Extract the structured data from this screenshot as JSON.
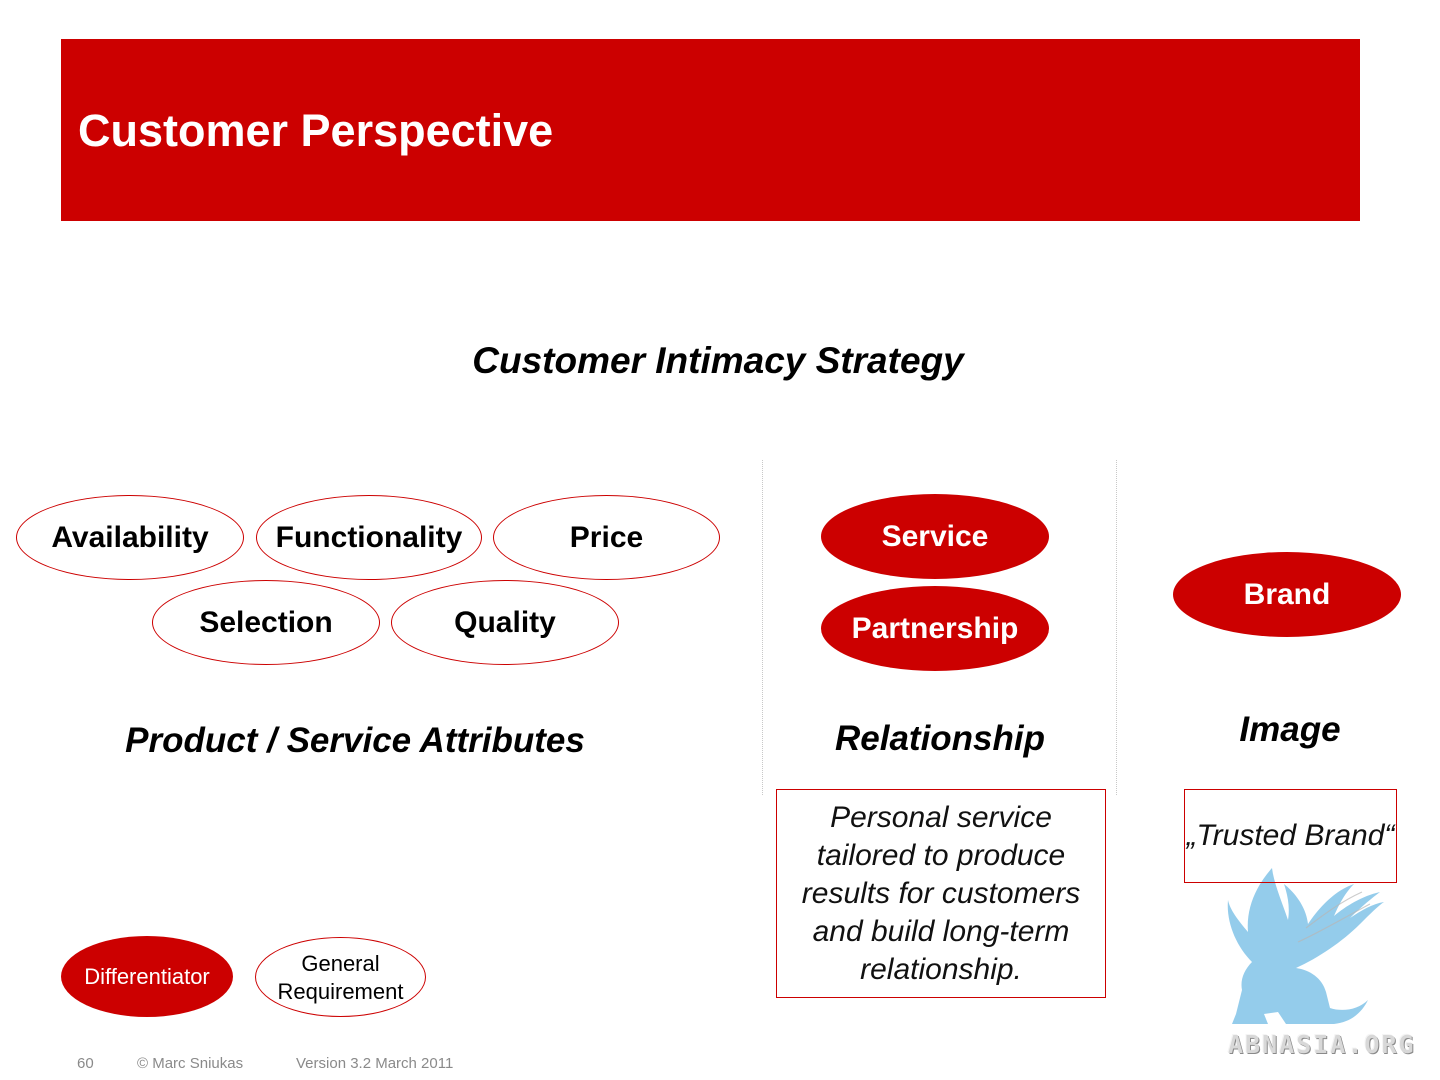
{
  "header": {
    "title": "Customer Perspective"
  },
  "diagram": {
    "subtitle": "Customer Intimacy Strategy",
    "attributes": {
      "items": [
        "Availability",
        "Functionality",
        "Price",
        "Selection",
        "Quality"
      ],
      "label": "Product / Service Attributes"
    },
    "relationship": {
      "items": [
        "Service",
        "Partnership"
      ],
      "label": "Relationship",
      "description": "Personal service tailored to produce results for customers and build long-term relationship."
    },
    "image": {
      "items": [
        "Brand"
      ],
      "label": "Image",
      "description": "„Trusted Brand“"
    },
    "legend": {
      "differentiator": "Differentiator",
      "general_requirement": "General Requirement"
    }
  },
  "footer": {
    "page_number": "60",
    "author": "© Marc Sniukas",
    "version": "Version 3.2 March 2011"
  },
  "watermark": {
    "text": "ABNASIA.ORG"
  },
  "colors": {
    "accent": "#cc0000",
    "watermark": "#8ec9ea"
  }
}
